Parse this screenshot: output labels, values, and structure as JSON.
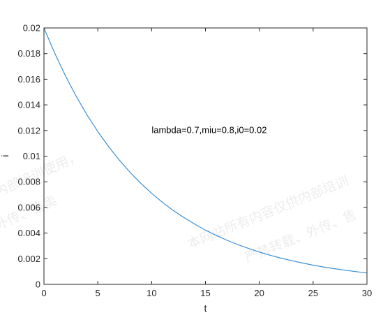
{
  "chart_data": {
    "type": "line",
    "title": "",
    "xlabel": "t",
    "ylabel": "i",
    "xlim": [
      0,
      30
    ],
    "ylim": [
      0,
      0.02
    ],
    "xticks": [
      0,
      5,
      10,
      15,
      20,
      25,
      30
    ],
    "xtick_labels": [
      "0",
      "5",
      "10",
      "15",
      "20",
      "25",
      "30"
    ],
    "yticks": [
      0,
      0.002,
      0.004,
      0.006,
      0.008,
      0.01,
      0.012,
      0.014,
      0.016,
      0.018,
      0.02
    ],
    "ytick_labels": [
      "0",
      "0.002",
      "0.004",
      "0.006",
      "0.008",
      "0.01",
      "0.012",
      "0.014",
      "0.016",
      "0.018",
      "0.02"
    ],
    "grid": false,
    "annotation": {
      "text": "lambda=0.7,miu=0.8,i0=0.02",
      "x": 10,
      "y": 0.0118
    },
    "series": [
      {
        "color": "#3b8fd6",
        "x": [
          0,
          1,
          2,
          3,
          4,
          5,
          6,
          7,
          8,
          9,
          10,
          11,
          12,
          13,
          14,
          15,
          16,
          17,
          18,
          19,
          20,
          21,
          22,
          23,
          24,
          25,
          26,
          27,
          28,
          29,
          30
        ],
        "values": [
          0.02,
          0.01803,
          0.01626,
          0.01466,
          0.01322,
          0.01192,
          0.01075,
          0.00969,
          0.00874,
          0.00788,
          0.0071,
          0.0064,
          0.00577,
          0.00521,
          0.0047,
          0.00423,
          0.00382,
          0.00344,
          0.0031,
          0.0028,
          0.00252,
          0.00227,
          0.00205,
          0.00185,
          0.00167,
          0.0015,
          0.00135,
          0.00122,
          0.0011,
          0.00099,
          0.00089
        ]
      }
    ]
  },
  "watermarks": [
    "内部培训使用，",
    "外传、售卖",
    "本网站所有内容仅供内部培训",
    "严禁转载、外传、售"
  ]
}
